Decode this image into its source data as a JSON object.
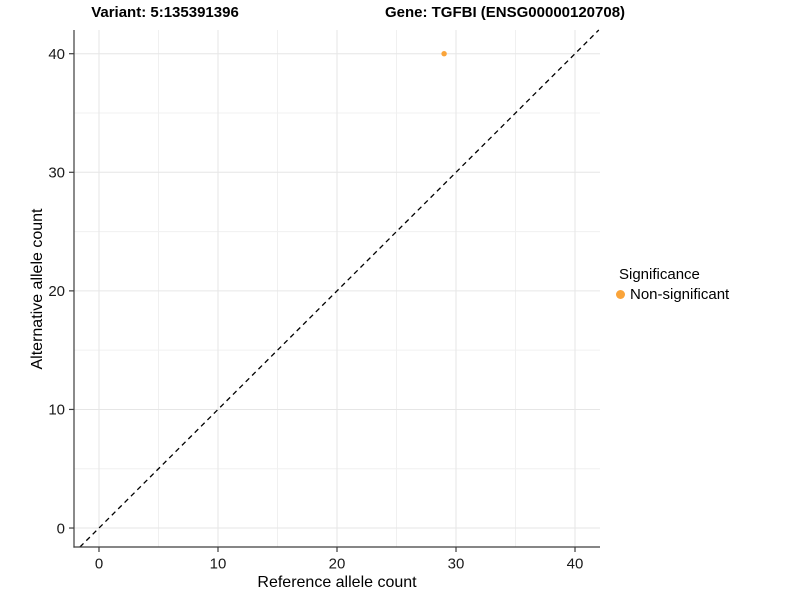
{
  "figure": {
    "title_variant": "Variant: 5:135391396",
    "title_gene": "Gene: TGFBI (ENSG00000120708)"
  },
  "legend": {
    "title": "Significance",
    "items": [
      {
        "label": "Non-significant",
        "color": "#FAA43A"
      }
    ]
  },
  "chart_data": {
    "type": "scatter",
    "title": "",
    "xlabel": "Reference allele count",
    "ylabel": "Alternative allele count",
    "xlim": [
      -2.1,
      42.1
    ],
    "ylim": [
      -1.6,
      42.0
    ],
    "x_ticks": [
      0,
      10,
      20,
      30,
      40
    ],
    "y_ticks": [
      0,
      10,
      20,
      30,
      40
    ],
    "x_minor_ticks": [
      5,
      15,
      25,
      35
    ],
    "y_minor_ticks": [
      5,
      15,
      25,
      35
    ],
    "grid": true,
    "legend_position": "right",
    "points": [
      {
        "x": 29,
        "y": 40,
        "series": "Non-significant",
        "color": "#FAA43A"
      }
    ],
    "reference_line": {
      "slope": 1,
      "intercept": 0,
      "style": "dashed",
      "color": "#000000"
    }
  },
  "colors": {
    "major_grid": "#e6e6e6",
    "minor_grid": "#f0f0f0",
    "axis_line": "#3d3d3d",
    "tick_label": "#1a1a1a",
    "point": "#FAA43A"
  }
}
